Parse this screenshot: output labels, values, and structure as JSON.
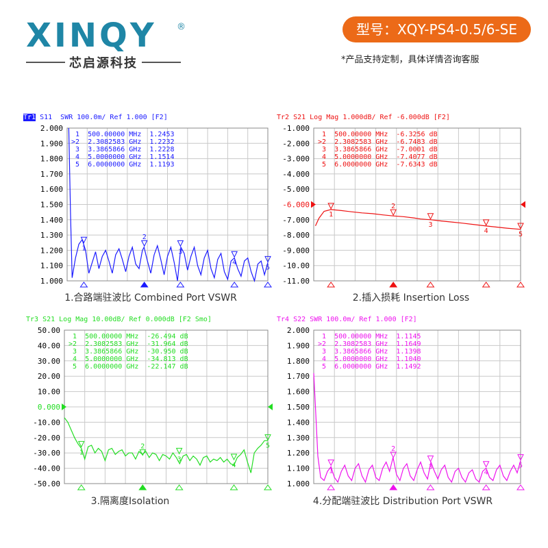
{
  "brand": {
    "logo": "XINQY",
    "registered": "®",
    "subtitle": "芯启源科技",
    "model": "型号：XQY-PS4-0.5/6-SE",
    "note": "*产品支持定制，具体详情咨询客服"
  },
  "chart_data": [
    {
      "type": "line",
      "header_tag": "Tr1",
      "header": "S11  SWR 100.0m/ Ref 1.000 [F2]",
      "caption": "1.合路端驻波比 Combined Port VSWR",
      "color": "#1a1aff",
      "ylim": [
        1.0,
        2.0
      ],
      "yticks": [
        "2.000",
        "1.900",
        "1.800",
        "1.700",
        "1.600",
        "1.500",
        "1.400",
        "1.300",
        "1.200",
        "1.100",
        "1.000"
      ],
      "markers": [
        {
          "id": "1",
          "freq": "500.00000 MHz",
          "value": "1.2453",
          "x": 0.5,
          "y": 1.2453
        },
        {
          "id": ">2",
          "freq": "2.3082583 GHz",
          "value": "1.2232",
          "x": 2.3082583,
          "y": 1.2232
        },
        {
          "id": "3",
          "freq": "3.3865866 GHz",
          "value": "1.2228",
          "x": 3.3865866,
          "y": 1.2228
        },
        {
          "id": "4",
          "freq": "5.0000000 GHz",
          "value": "1.1514",
          "x": 5.0,
          "y": 1.1514
        },
        {
          "id": "5",
          "freq": "6.0000000 GHz",
          "value": "1.1193",
          "x": 6.0,
          "y": 1.1193
        }
      ],
      "trace": [
        [
          0.05,
          2.0
        ],
        [
          0.1,
          1.45
        ],
        [
          0.15,
          1.02
        ],
        [
          0.25,
          1.15
        ],
        [
          0.35,
          1.24
        ],
        [
          0.45,
          1.27
        ],
        [
          0.55,
          1.2
        ],
        [
          0.65,
          1.05
        ],
        [
          0.75,
          1.12
        ],
        [
          0.85,
          1.19
        ],
        [
          0.95,
          1.08
        ],
        [
          1.05,
          1.16
        ],
        [
          1.15,
          1.2
        ],
        [
          1.25,
          1.13
        ],
        [
          1.35,
          1.05
        ],
        [
          1.45,
          1.17
        ],
        [
          1.55,
          1.21
        ],
        [
          1.65,
          1.14
        ],
        [
          1.75,
          1.06
        ],
        [
          1.85,
          1.16
        ],
        [
          1.95,
          1.22
        ],
        [
          2.05,
          1.11
        ],
        [
          2.15,
          1.08
        ],
        [
          2.25,
          1.2
        ],
        [
          2.3,
          1.22
        ],
        [
          2.4,
          1.13
        ],
        [
          2.5,
          1.05
        ],
        [
          2.6,
          1.17
        ],
        [
          2.7,
          1.23
        ],
        [
          2.8,
          1.14
        ],
        [
          2.9,
          1.04
        ],
        [
          3.0,
          1.16
        ],
        [
          3.1,
          1.22
        ],
        [
          3.2,
          1.12
        ],
        [
          3.3,
          1.0
        ],
        [
          3.4,
          1.22
        ],
        [
          3.5,
          1.18
        ],
        [
          3.6,
          1.07
        ],
        [
          3.7,
          1.16
        ],
        [
          3.8,
          1.22
        ],
        [
          3.9,
          1.1
        ],
        [
          4.0,
          1.04
        ],
        [
          4.1,
          1.15
        ],
        [
          4.2,
          1.2
        ],
        [
          4.3,
          1.08
        ],
        [
          4.4,
          1.02
        ],
        [
          4.5,
          1.14
        ],
        [
          4.6,
          1.18
        ],
        [
          4.7,
          1.06
        ],
        [
          4.8,
          1.01
        ],
        [
          4.9,
          1.13
        ],
        [
          5.0,
          1.15
        ],
        [
          5.1,
          1.08
        ],
        [
          5.2,
          1.03
        ],
        [
          5.3,
          1.13
        ],
        [
          5.4,
          1.15
        ],
        [
          5.5,
          1.06
        ],
        [
          5.6,
          1.0
        ],
        [
          5.7,
          1.11
        ],
        [
          5.8,
          1.13
        ],
        [
          5.9,
          1.04
        ],
        [
          6.0,
          1.12
        ]
      ]
    },
    {
      "type": "line",
      "header_tag": "Tr2",
      "header": "S21 Log Mag 1.000dB/ Ref -6.000dB [F2]",
      "caption": "2.插入损耗 Insertion Loss",
      "color": "#ee1111",
      "ylim": [
        -11.0,
        -1.0
      ],
      "yticks": [
        "-1.000",
        "-2.000",
        "-3.000",
        "-4.000",
        "-5.000",
        "-6.000",
        "-7.000",
        "-8.000",
        "-9.000",
        "-10.00",
        "-11.00"
      ],
      "ref_tick": "-6.000",
      "markers": [
        {
          "id": "1",
          "freq": "500.00000 MHz",
          "value": "-6.3256 dB",
          "x": 0.5,
          "y": -6.3256
        },
        {
          "id": ">2",
          "freq": "2.3082583 GHz",
          "value": "-6.7483 dB",
          "x": 2.3082583,
          "y": -6.7483
        },
        {
          "id": "3",
          "freq": "3.3865866 GHz",
          "value": "-7.0001 dB",
          "x": 3.3865866,
          "y": -7.0001
        },
        {
          "id": "4",
          "freq": "5.0000000 GHz",
          "value": "-7.4077 dB",
          "x": 5.0,
          "y": -7.4077
        },
        {
          "id": "5",
          "freq": "6.0000000 GHz",
          "value": "-7.6343 dB",
          "x": 6.0,
          "y": -7.6343
        }
      ],
      "trace": [
        [
          0.05,
          -7.4
        ],
        [
          0.15,
          -6.9
        ],
        [
          0.3,
          -6.45
        ],
        [
          0.5,
          -6.33
        ],
        [
          0.8,
          -6.4
        ],
        [
          1.1,
          -6.48
        ],
        [
          1.4,
          -6.55
        ],
        [
          1.7,
          -6.6
        ],
        [
          2.0,
          -6.68
        ],
        [
          2.3,
          -6.75
        ],
        [
          2.6,
          -6.8
        ],
        [
          2.9,
          -6.88
        ],
        [
          3.1,
          -6.95
        ],
        [
          3.4,
          -7.0
        ],
        [
          3.7,
          -7.08
        ],
        [
          4.0,
          -7.15
        ],
        [
          4.3,
          -7.22
        ],
        [
          4.6,
          -7.3
        ],
        [
          5.0,
          -7.41
        ],
        [
          5.3,
          -7.48
        ],
        [
          5.6,
          -7.55
        ],
        [
          6.0,
          -7.63
        ]
      ]
    },
    {
      "type": "line",
      "header_tag": "Tr3",
      "header": "S21 Log Mag 10.00dB/ Ref 0.000dB [F2 Smo]",
      "caption": "3.隔离度Isolation",
      "color": "#22dd22",
      "ylim": [
        -50.0,
        50.0
      ],
      "yticks": [
        "50.00",
        "40.00",
        "30.00",
        "20.00",
        "10.00",
        "0.000",
        "-10.00",
        "-20.00",
        "-30.00",
        "-40.00",
        "-50.00"
      ],
      "ref_tick": "0.000",
      "markers": [
        {
          "id": "1",
          "freq": "500.00000 MHz",
          "value": "-26.494 dB",
          "x": 0.5,
          "y": -26.494
        },
        {
          "id": ">2",
          "freq": "2.3082583 GHz",
          "value": "-31.964 dB",
          "x": 2.3082583,
          "y": -31.964
        },
        {
          "id": "3",
          "freq": "3.3865866 GHz",
          "value": "-30.950 dB",
          "x": 3.3865866,
          "y": -30.95
        },
        {
          "id": "4",
          "freq": "5.0000000 GHz",
          "value": "-34.813 dB",
          "x": 5.0,
          "y": -34.813
        },
        {
          "id": "5",
          "freq": "6.0000000 GHz",
          "value": "-22.147 dB",
          "x": 6.0,
          "y": -22.147
        }
      ],
      "trace": [
        [
          0.0,
          -7
        ],
        [
          0.1,
          -10
        ],
        [
          0.2,
          -15
        ],
        [
          0.3,
          -20
        ],
        [
          0.4,
          -24
        ],
        [
          0.5,
          -27
        ],
        [
          0.6,
          -34
        ],
        [
          0.7,
          -26
        ],
        [
          0.8,
          -25
        ],
        [
          0.9,
          -30
        ],
        [
          1.0,
          -27
        ],
        [
          1.1,
          -29
        ],
        [
          1.2,
          -35
        ],
        [
          1.3,
          -28
        ],
        [
          1.4,
          -27
        ],
        [
          1.5,
          -31
        ],
        [
          1.6,
          -29
        ],
        [
          1.7,
          -28
        ],
        [
          1.8,
          -32
        ],
        [
          1.9,
          -30
        ],
        [
          2.0,
          -30
        ],
        [
          2.1,
          -34
        ],
        [
          2.2,
          -29
        ],
        [
          2.3,
          -31
        ],
        [
          2.4,
          -29
        ],
        [
          2.5,
          -33
        ],
        [
          2.6,
          -30
        ],
        [
          2.7,
          -31
        ],
        [
          2.8,
          -35
        ],
        [
          2.9,
          -31
        ],
        [
          3.0,
          -32
        ],
        [
          3.1,
          -34
        ],
        [
          3.2,
          -30
        ],
        [
          3.3,
          -33
        ],
        [
          3.4,
          -37
        ],
        [
          3.5,
          -32
        ],
        [
          3.6,
          -31
        ],
        [
          3.7,
          -35
        ],
        [
          3.8,
          -32
        ],
        [
          3.9,
          -34
        ],
        [
          4.0,
          -38
        ],
        [
          4.1,
          -33
        ],
        [
          4.2,
          -32
        ],
        [
          4.3,
          -36
        ],
        [
          4.4,
          -34
        ],
        [
          4.5,
          -35
        ],
        [
          4.6,
          -33
        ],
        [
          4.7,
          -36
        ],
        [
          4.8,
          -34
        ],
        [
          4.9,
          -37
        ],
        [
          5.0,
          -38
        ],
        [
          5.1,
          -33
        ],
        [
          5.2,
          -31
        ],
        [
          5.3,
          -28
        ],
        [
          5.4,
          -36
        ],
        [
          5.5,
          -43
        ],
        [
          5.6,
          -30
        ],
        [
          5.7,
          -27
        ],
        [
          5.8,
          -25
        ],
        [
          5.9,
          -22
        ],
        [
          6.0,
          -22
        ]
      ]
    },
    {
      "type": "line",
      "header_tag": "Tr4",
      "header": "S22 SWR 100.0m/ Ref 1.000 [F2]",
      "caption": "4.分配端驻波比 Distribution  Port VSWR",
      "color": "#ee11ee",
      "ylim": [
        1.0,
        2.0
      ],
      "yticks": [
        "2.000",
        "1.900",
        "1.800",
        "1.700",
        "1.600",
        "1.500",
        "1.400",
        "1.300",
        "1.200",
        "1.100",
        "1.000"
      ],
      "markers": [
        {
          "id": "1",
          "freq": "500.00000 MHz",
          "value": "1.1145",
          "x": 0.5,
          "y": 1.1145
        },
        {
          "id": ">2",
          "freq": "2.3082583 GHz",
          "value": "1.1649",
          "x": 2.3082583,
          "y": 1.1649
        },
        {
          "id": "3",
          "freq": "3.3865866 GHz",
          "value": "1.1398",
          "x": 3.3865866,
          "y": 1.1398
        },
        {
          "id": "4",
          "freq": "5.0000000 GHz",
          "value": "1.1040",
          "x": 5.0,
          "y": 1.104
        },
        {
          "id": "5",
          "freq": "6.0000000 GHz",
          "value": "1.1492",
          "x": 6.0,
          "y": 1.1492
        }
      ],
      "trace": [
        [
          0.0,
          1.72
        ],
        [
          0.05,
          1.5
        ],
        [
          0.12,
          1.18
        ],
        [
          0.2,
          1.04
        ],
        [
          0.3,
          1.02
        ],
        [
          0.4,
          1.08
        ],
        [
          0.5,
          1.11
        ],
        [
          0.6,
          1.04
        ],
        [
          0.7,
          1.01
        ],
        [
          0.8,
          1.08
        ],
        [
          0.9,
          1.12
        ],
        [
          1.0,
          1.05
        ],
        [
          1.1,
          1.02
        ],
        [
          1.2,
          1.1
        ],
        [
          1.3,
          1.13
        ],
        [
          1.4,
          1.05
        ],
        [
          1.5,
          1.01
        ],
        [
          1.6,
          1.09
        ],
        [
          1.7,
          1.12
        ],
        [
          1.8,
          1.04
        ],
        [
          1.9,
          1.02
        ],
        [
          2.0,
          1.1
        ],
        [
          2.1,
          1.14
        ],
        [
          2.2,
          1.08
        ],
        [
          2.3,
          1.17
        ],
        [
          2.4,
          1.06
        ],
        [
          2.5,
          1.02
        ],
        [
          2.6,
          1.1
        ],
        [
          2.7,
          1.13
        ],
        [
          2.8,
          1.05
        ],
        [
          2.9,
          1.02
        ],
        [
          3.0,
          1.09
        ],
        [
          3.1,
          1.14
        ],
        [
          3.2,
          1.07
        ],
        [
          3.3,
          1.03
        ],
        [
          3.4,
          1.14
        ],
        [
          3.5,
          1.08
        ],
        [
          3.6,
          1.03
        ],
        [
          3.7,
          1.09
        ],
        [
          3.8,
          1.12
        ],
        [
          3.9,
          1.04
        ],
        [
          4.0,
          1.01
        ],
        [
          4.1,
          1.08
        ],
        [
          4.2,
          1.1
        ],
        [
          4.3,
          1.04
        ],
        [
          4.4,
          1.01
        ],
        [
          4.5,
          1.07
        ],
        [
          4.6,
          1.09
        ],
        [
          4.7,
          1.03
        ],
        [
          4.8,
          1.01
        ],
        [
          4.9,
          1.08
        ],
        [
          5.0,
          1.1
        ],
        [
          5.1,
          1.04
        ],
        [
          5.2,
          1.02
        ],
        [
          5.3,
          1.09
        ],
        [
          5.4,
          1.12
        ],
        [
          5.5,
          1.05
        ],
        [
          5.6,
          1.02
        ],
        [
          5.7,
          1.08
        ],
        [
          5.8,
          1.12
        ],
        [
          5.9,
          1.07
        ],
        [
          6.0,
          1.15
        ]
      ]
    }
  ]
}
